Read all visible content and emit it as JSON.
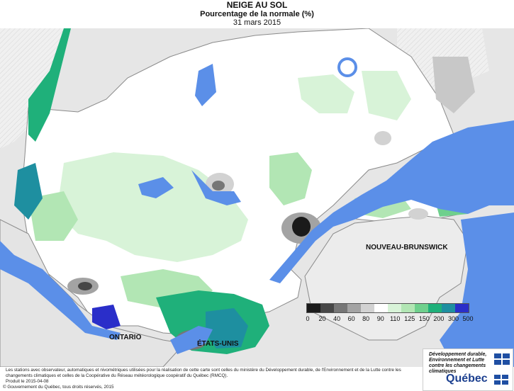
{
  "header": {
    "title": "NEIGE AU SOL",
    "subtitle": "Pourcentage de la normale (%)",
    "date": "31 mars 2015"
  },
  "map": {
    "labels": {
      "nouveau_brunswick": "NOUVEAU-BRUNSWICK",
      "ontario": "ONTARIO",
      "etats_unis": "ÉTATS-UNIS"
    },
    "colors": {
      "water": "#5b8fe8",
      "land_outside": "#e3e3e3",
      "no_data_hatch": "#f2f2f2",
      "border": "#8a8a8a"
    }
  },
  "legend": {
    "ticks": [
      "0",
      "20",
      "40",
      "60",
      "80",
      "90",
      "110",
      "125",
      "150",
      "200",
      "300",
      "500"
    ],
    "colors": [
      "#1a1a1a",
      "#464646",
      "#767676",
      "#a3a3a3",
      "#d2d2d2",
      "#ffffff",
      "#d8f3d8",
      "#b2e6b4",
      "#6fd08d",
      "#1fb07a",
      "#1e8fa0",
      "#2a2ec9"
    ]
  },
  "footer": {
    "note": "Les stations avec observateur, automatiques et nivométriques utilisées pour la réalisation de cette carte sont celles du ministère du Développement durable, de l'Environnement et de la Lutte contre les changements climatiques et celles de la Coopérative du Réseau météorologique coopératif du Québec (RMCQ).",
    "produced": "Produit le 2015-04-08",
    "copyright": "© Gouvernement du Québec, tous droits réservés, 2015"
  },
  "gov": {
    "ministry": "Développement durable, Environnement et Lutte contre les changements climatiques",
    "logo": "Québec"
  }
}
